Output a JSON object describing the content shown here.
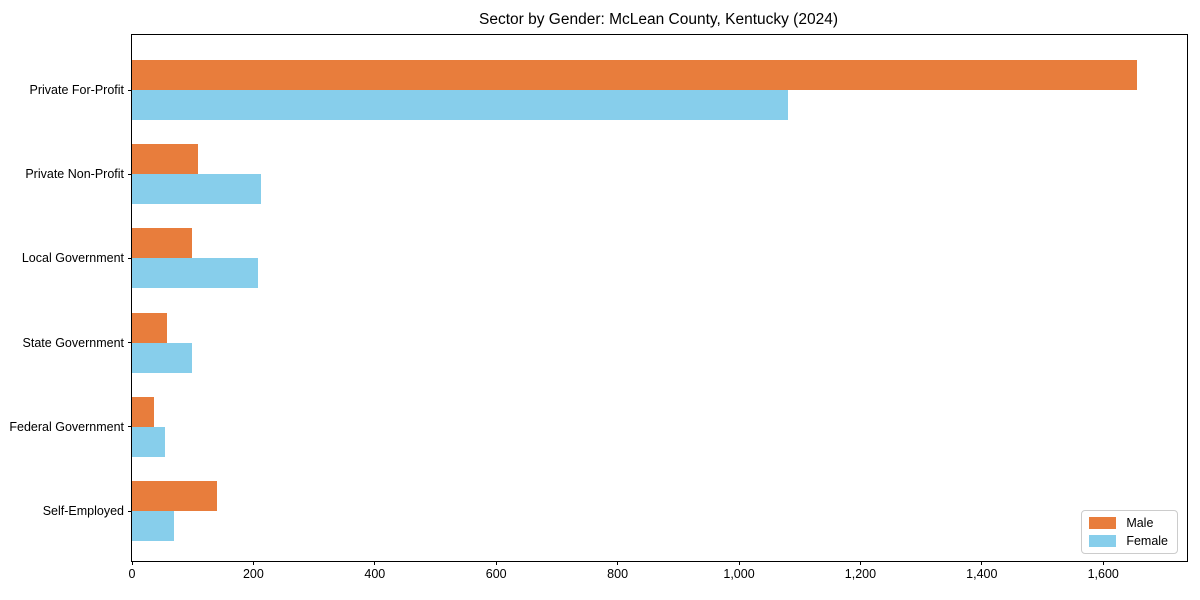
{
  "figure": {
    "title": "Sector by Gender: McLean County, Kentucky (2024)"
  },
  "chart_data": {
    "type": "bar",
    "orientation": "horizontal",
    "title": "Sector by Gender: McLean County, Kentucky (2024)",
    "categories": [
      "Private For-Profit",
      "Private Non-Profit",
      "Local Government",
      "State Government",
      "Federal Government",
      "Self-Employed"
    ],
    "series": [
      {
        "name": "Male",
        "color": "#e87d3c",
        "values": [
          1655,
          109,
          99,
          57,
          36,
          140
        ]
      },
      {
        "name": "Female",
        "color": "#87ceeb",
        "values": [
          1081,
          213,
          207,
          98,
          54,
          69
        ]
      }
    ],
    "xlabel": "",
    "ylabel": "",
    "xlim": [
      0,
      1738
    ],
    "xticks": [
      0,
      200,
      400,
      600,
      800,
      1000,
      1200,
      1400,
      1600
    ],
    "xtick_labels": [
      "0",
      "200",
      "400",
      "600",
      "800",
      "1,000",
      "1,200",
      "1,400",
      "1,600"
    ],
    "grid": false,
    "legend": {
      "position": "lower right",
      "entries": [
        "Male",
        "Female"
      ]
    }
  }
}
